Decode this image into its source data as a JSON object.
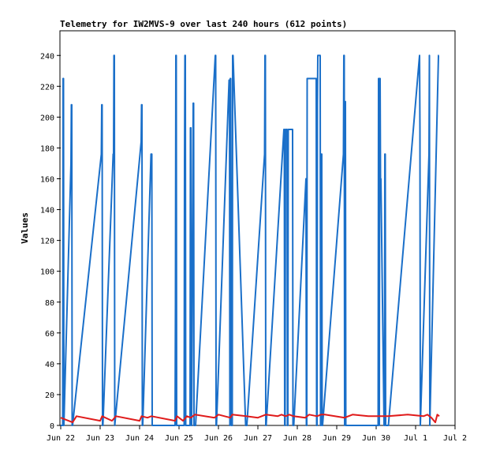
{
  "chart_data": {
    "type": "line",
    "title": "Telemetry for IW2MVS-9 over last 240 hours (612 points)",
    "xlabel": "",
    "ylabel": "Values",
    "x_ticks": [
      "Jun 22",
      "Jun 23",
      "Jun 24",
      "Jun 25",
      "Jun 26",
      "Jun 27",
      "Jun 28",
      "Jun 29",
      "Jun 30",
      "Jul 1",
      "Jul 2"
    ],
    "x_range_days": [
      0,
      10
    ],
    "ylim": [
      0,
      256
    ],
    "y_ticks": [
      0,
      20,
      40,
      60,
      80,
      100,
      120,
      140,
      160,
      180,
      200,
      220,
      240
    ],
    "grid": false,
    "legend": "none",
    "colors": {
      "blue": "#1a6fc9",
      "red": "#e01b1b"
    },
    "series": [
      {
        "color": "blue",
        "x": [
          0.0,
          0.05,
          0.06,
          0.07,
          0.08,
          0.26,
          0.27,
          0.28,
          0.29,
          0.3,
          1.03,
          1.04,
          1.05,
          1.06,
          1.07,
          1.33,
          1.34,
          1.35,
          1.36,
          1.37,
          2.04,
          2.05,
          2.06,
          2.07,
          2.08,
          2.29,
          2.3,
          2.31,
          2.32,
          2.9,
          2.91,
          2.92,
          2.93,
          2.94,
          3.13,
          3.14,
          3.15,
          3.16,
          3.17,
          3.28,
          3.29,
          3.3,
          3.31,
          3.32,
          3.36,
          3.37,
          3.38,
          3.39,
          3.4,
          3.41,
          3.42,
          3.92,
          3.93,
          3.94,
          3.95,
          4.27,
          4.28,
          4.29,
          4.3,
          4.31,
          4.33,
          4.34,
          4.35,
          4.36,
          4.37,
          4.69,
          4.7,
          4.71,
          4.72,
          5.17,
          5.18,
          5.19,
          5.2,
          5.21,
          5.66,
          5.67,
          5.68,
          5.69,
          5.7,
          5.74,
          5.75,
          5.76,
          5.77,
          5.88,
          5.89,
          5.9,
          5.91,
          6.22,
          6.23,
          6.24,
          6.25,
          6.48,
          6.49,
          6.5,
          6.51,
          6.52,
          6.58,
          6.59,
          6.6,
          6.61,
          6.62,
          6.63,
          6.64,
          7.17,
          7.18,
          7.19,
          7.2,
          7.21,
          7.22,
          7.23,
          8.05,
          8.06,
          8.07,
          8.08,
          8.09,
          8.1,
          8.11,
          8.12,
          8.2,
          8.21,
          8.22,
          8.23,
          8.24,
          8.25,
          8.29,
          8.3,
          8.31,
          9.1,
          9.11,
          9.12,
          9.34,
          9.35,
          9.36,
          9.58,
          9.59
        ],
        "y": [
          0,
          0,
          225,
          225,
          0,
          170,
          208,
          208,
          0,
          0,
          176,
          208,
          208,
          0,
          0,
          176,
          176,
          240,
          240,
          0,
          184,
          208,
          208,
          0,
          0,
          176,
          176,
          176,
          0,
          0,
          80,
          240,
          240,
          0,
          0,
          170,
          240,
          240,
          0,
          0,
          193,
          193,
          0,
          0,
          209,
          209,
          0,
          0,
          0,
          0,
          0,
          240,
          240,
          0,
          0,
          224,
          224,
          0,
          225,
          225,
          0,
          0,
          0,
          240,
          240,
          0,
          0,
          0,
          0,
          176,
          240,
          240,
          0,
          0,
          192,
          192,
          0,
          0,
          192,
          192,
          0,
          0,
          192,
          192,
          0,
          0,
          0,
          160,
          0,
          0,
          225,
          225,
          0,
          0,
          208,
          240,
          240,
          0,
          0,
          176,
          176,
          0,
          0,
          176,
          240,
          240,
          0,
          210,
          210,
          0,
          0,
          225,
          225,
          0,
          225,
          225,
          160,
          160,
          0,
          0,
          176,
          176,
          0,
          0,
          0,
          0,
          0,
          240,
          192,
          0,
          176,
          240,
          0,
          240,
          240
        ],
        "segments": [
          [
            0,
            135
          ]
        ]
      },
      {
        "color": "red",
        "x": [
          0.0,
          0.1,
          0.3,
          0.4,
          1.0,
          1.05,
          1.3,
          1.4,
          2.0,
          2.05,
          2.2,
          2.3,
          2.9,
          2.95,
          3.1,
          3.2,
          3.3,
          3.35,
          3.4,
          3.9,
          4.0,
          4.3,
          4.35,
          4.7,
          5.0,
          5.2,
          5.5,
          5.6,
          5.7,
          5.8,
          5.9,
          6.2,
          6.3,
          6.5,
          6.6,
          6.7,
          7.2,
          7.4,
          7.8,
          8.3,
          8.8,
          9.2,
          9.3,
          9.4,
          9.5,
          9.55,
          9.6
        ],
        "y": [
          5,
          4,
          2,
          6,
          3,
          6,
          3,
          6,
          3,
          6,
          5,
          6,
          3,
          6,
          3,
          6,
          5,
          6,
          7,
          5,
          7,
          5,
          7,
          6,
          5,
          7,
          6,
          7,
          6,
          7,
          6,
          5,
          7,
          6,
          7,
          7,
          5,
          7,
          6,
          6,
          7,
          6,
          7,
          5,
          2,
          7,
          6
        ]
      }
    ]
  }
}
